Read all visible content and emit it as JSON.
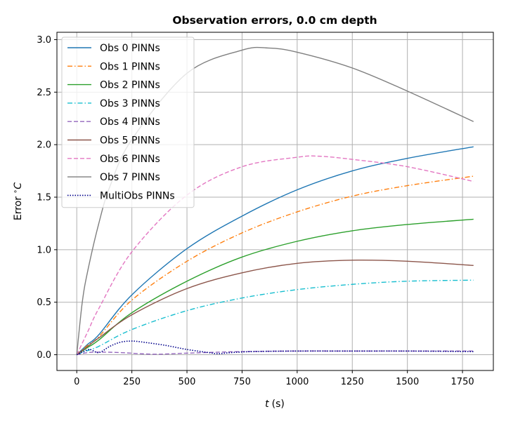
{
  "chart_data": {
    "type": "line",
    "title": "Observation errors, 0.0 cm depth",
    "xlabel_var": "t",
    "xlabel_unit": "(s)",
    "ylabel": "Error",
    "ylabel_unit": "C",
    "xlim": [
      -90,
      1890
    ],
    "ylim": [
      -0.15,
      3.07
    ],
    "xticks": [
      0,
      250,
      500,
      750,
      1000,
      1250,
      1500,
      1750
    ],
    "yticks": [
      0.0,
      0.5,
      1.0,
      1.5,
      2.0,
      2.5,
      3.0
    ],
    "grid": true,
    "legend_position": "upper-left",
    "series": [
      {
        "name": "Obs 0 PINNs",
        "color": "#1f77b4",
        "dash": "solid",
        "x": [
          0,
          50,
          100,
          250,
          500,
          750,
          1000,
          1250,
          1500,
          1800
        ],
        "y": [
          0.0,
          0.1,
          0.19,
          0.57,
          1.01,
          1.32,
          1.57,
          1.75,
          1.87,
          1.98
        ]
      },
      {
        "name": "Obs 1 PINNs",
        "color": "#ff7f0e",
        "dash": "dashdot",
        "x": [
          0,
          50,
          100,
          250,
          500,
          750,
          1000,
          1250,
          1500,
          1800
        ],
        "y": [
          0.0,
          0.09,
          0.17,
          0.52,
          0.89,
          1.16,
          1.36,
          1.51,
          1.61,
          1.7
        ]
      },
      {
        "name": "Obs 2 PINNs",
        "color": "#2ca02c",
        "dash": "solid",
        "x": [
          0,
          50,
          100,
          250,
          500,
          750,
          1000,
          1250,
          1500,
          1800
        ],
        "y": [
          0.0,
          0.07,
          0.14,
          0.4,
          0.7,
          0.93,
          1.08,
          1.18,
          1.24,
          1.29
        ]
      },
      {
        "name": "Obs 3 PINNs",
        "color": "#17becf",
        "dash": "dashdot",
        "x": [
          0,
          50,
          100,
          250,
          500,
          750,
          1000,
          1250,
          1500,
          1800
        ],
        "y": [
          0.0,
          0.04,
          0.08,
          0.24,
          0.42,
          0.54,
          0.62,
          0.67,
          0.7,
          0.71
        ]
      },
      {
        "name": "Obs 4 PINNs",
        "color": "#9467bd",
        "dash": "dashed",
        "x": [
          0,
          50,
          100,
          200,
          350,
          500,
          750,
          1000,
          1250,
          1500,
          1800
        ],
        "y": [
          0.0,
          0.02,
          0.025,
          0.02,
          0.005,
          0.015,
          0.03,
          0.035,
          0.035,
          0.035,
          0.035
        ]
      },
      {
        "name": "Obs 5 PINNs",
        "color": "#8c564b",
        "dash": "solid",
        "x": [
          0,
          50,
          100,
          250,
          500,
          750,
          1000,
          1250,
          1500,
          1800
        ],
        "y": [
          0.0,
          0.08,
          0.16,
          0.38,
          0.63,
          0.78,
          0.87,
          0.9,
          0.89,
          0.85
        ]
      },
      {
        "name": "Obs 6 PINNs",
        "color": "#e377c2",
        "dash": "dashed",
        "x": [
          0,
          50,
          100,
          250,
          500,
          750,
          1000,
          1100,
          1250,
          1500,
          1800
        ],
        "y": [
          0.0,
          0.22,
          0.44,
          0.98,
          1.52,
          1.79,
          1.88,
          1.89,
          1.86,
          1.79,
          1.65
        ]
      },
      {
        "name": "Obs 7 PINNs",
        "color": "#7f7f7f",
        "dash": "solid",
        "x": [
          0,
          25,
          50,
          100,
          150,
          250,
          500,
          750,
          870,
          1000,
          1250,
          1500,
          1800
        ],
        "y": [
          0.0,
          0.5,
          0.8,
          1.25,
          1.6,
          2.05,
          2.68,
          2.9,
          2.92,
          2.88,
          2.73,
          2.51,
          2.22
        ]
      },
      {
        "name": "MultiObs PINNs",
        "color": "#00008b",
        "dash": "dotted",
        "x": [
          0,
          30,
          60,
          100,
          150,
          200,
          250,
          300,
          400,
          500,
          600,
          640,
          700,
          800,
          1000,
          1250,
          1500,
          1800
        ],
        "y": [
          0.0,
          0.03,
          0.05,
          0.02,
          0.08,
          0.12,
          0.13,
          0.12,
          0.09,
          0.05,
          0.02,
          0.01,
          0.02,
          0.03,
          0.035,
          0.035,
          0.035,
          0.03
        ]
      }
    ]
  }
}
